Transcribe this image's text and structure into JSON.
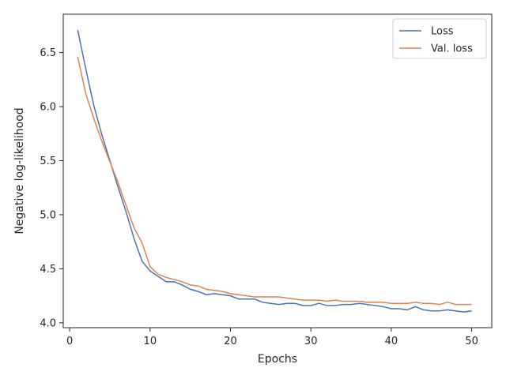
{
  "chart_data": {
    "type": "line",
    "title": "",
    "xlabel": "Epochs",
    "ylabel": "Negative log-likelihood",
    "xlim": [
      -0.8,
      52.5
    ],
    "ylim": [
      3.955,
      6.855
    ],
    "x_ticks": [
      0,
      10,
      20,
      30,
      40,
      50
    ],
    "y_ticks": [
      4.0,
      4.5,
      5.0,
      5.5,
      6.0,
      6.5
    ],
    "x_tick_labels": [
      "0",
      "10",
      "20",
      "30",
      "40",
      "50"
    ],
    "y_tick_labels": [
      "4.0",
      "4.5",
      "5.0",
      "5.5",
      "6.0",
      "6.5"
    ],
    "grid": false,
    "legend_position": "top-right",
    "x": [
      1,
      2,
      3,
      4,
      5,
      6,
      7,
      8,
      9,
      10,
      11,
      12,
      13,
      14,
      15,
      16,
      17,
      18,
      19,
      20,
      21,
      22,
      23,
      24,
      25,
      26,
      27,
      28,
      29,
      30,
      31,
      32,
      33,
      34,
      35,
      36,
      37,
      38,
      39,
      40,
      41,
      42,
      43,
      44,
      45,
      46,
      47,
      48,
      49,
      50
    ],
    "series": [
      {
        "name": "Loss",
        "color": "#4c72b0",
        "values": [
          6.71,
          6.35,
          6.01,
          5.74,
          5.5,
          5.26,
          5.03,
          4.78,
          4.57,
          4.48,
          4.43,
          4.38,
          4.38,
          4.35,
          4.31,
          4.29,
          4.26,
          4.27,
          4.26,
          4.25,
          4.22,
          4.22,
          4.22,
          4.19,
          4.18,
          4.17,
          4.18,
          4.18,
          4.16,
          4.16,
          4.18,
          4.16,
          4.16,
          4.17,
          4.17,
          4.18,
          4.17,
          4.16,
          4.15,
          4.13,
          4.13,
          4.12,
          4.15,
          4.12,
          4.11,
          4.11,
          4.12,
          4.11,
          4.1,
          4.11
        ]
      },
      {
        "name": "Val. loss",
        "color": "#dd8452",
        "values": [
          6.46,
          6.12,
          5.89,
          5.68,
          5.49,
          5.3,
          5.09,
          4.88,
          4.74,
          4.52,
          4.45,
          4.42,
          4.4,
          4.38,
          4.35,
          4.34,
          4.31,
          4.3,
          4.29,
          4.27,
          4.26,
          4.25,
          4.24,
          4.24,
          4.24,
          4.24,
          4.23,
          4.22,
          4.21,
          4.21,
          4.21,
          4.2,
          4.21,
          4.2,
          4.2,
          4.2,
          4.19,
          4.19,
          4.19,
          4.18,
          4.18,
          4.18,
          4.19,
          4.18,
          4.18,
          4.17,
          4.19,
          4.17,
          4.17,
          4.17
        ]
      }
    ]
  }
}
